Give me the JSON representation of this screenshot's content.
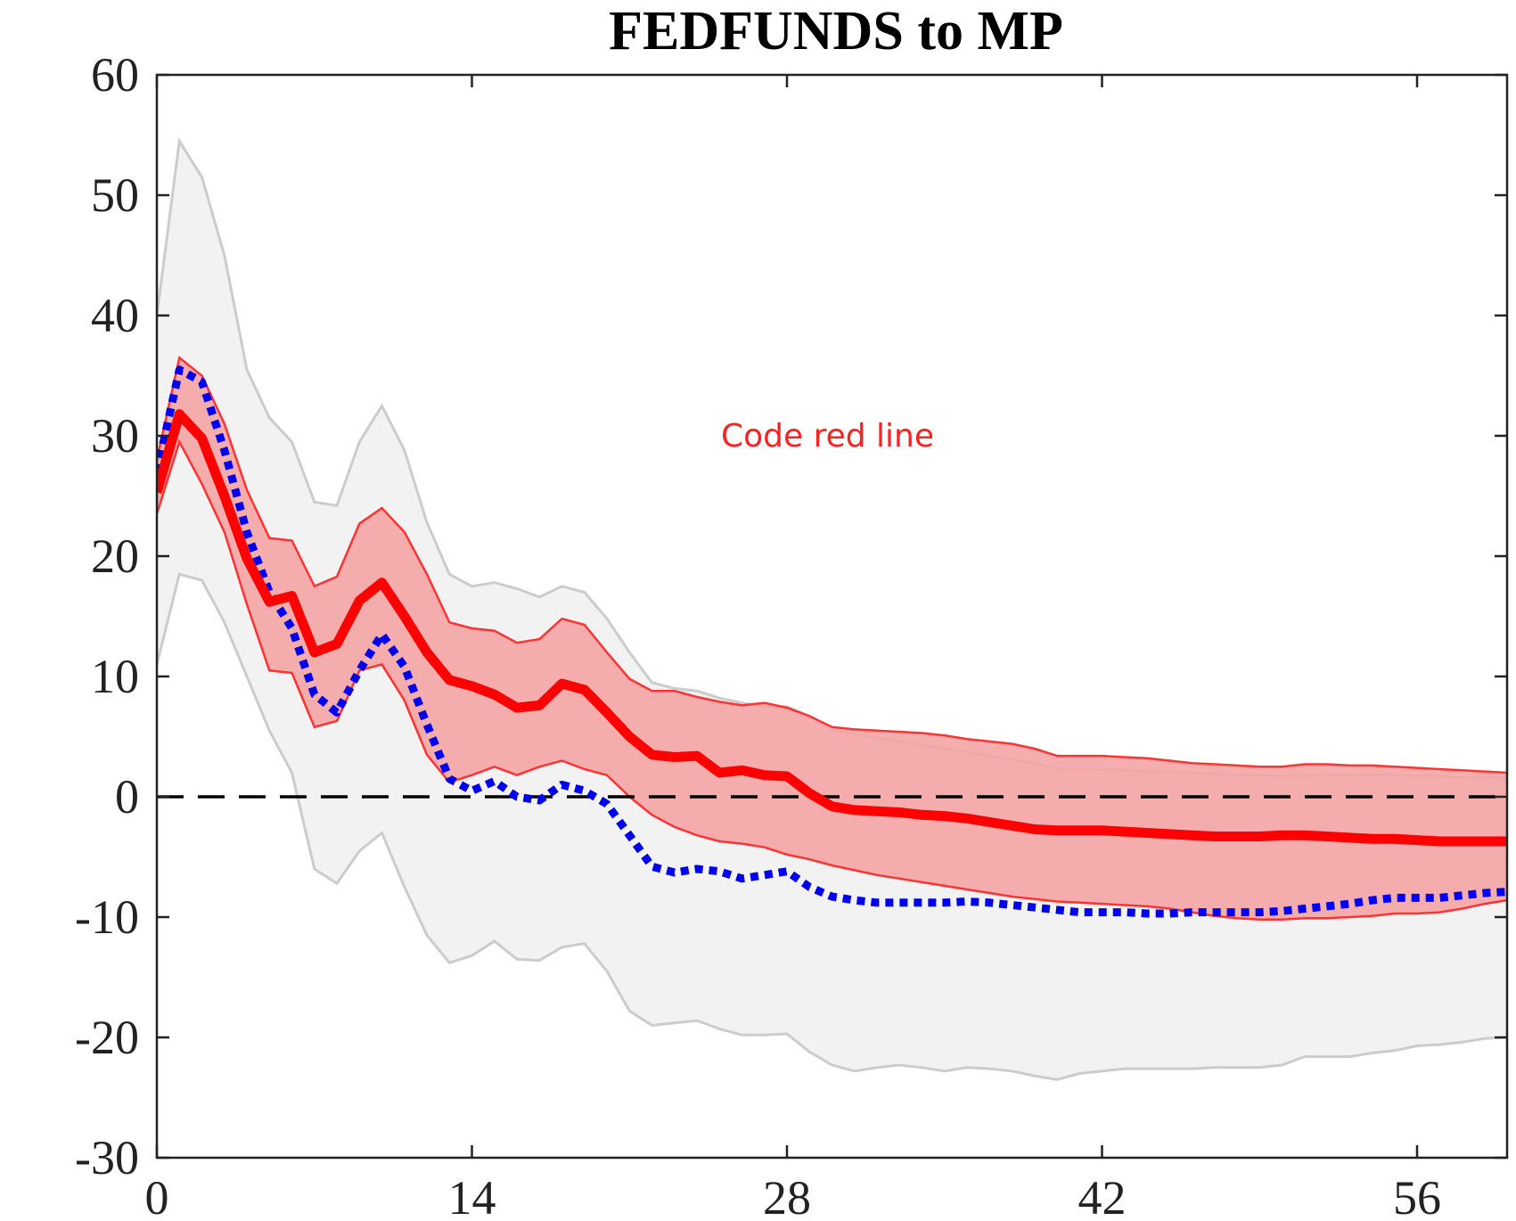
{
  "chart_data": {
    "type": "line",
    "title": "FEDFUNDS to MP",
    "xlabel": "",
    "ylabel": "",
    "xlim": [
      0,
      60
    ],
    "ylim": [
      -30,
      60
    ],
    "x_ticks": [
      0,
      14,
      28,
      42,
      56
    ],
    "y_ticks": [
      -30,
      -20,
      -10,
      0,
      10,
      20,
      30,
      40,
      50,
      60
    ],
    "annotation": {
      "text": "Code red line",
      "x": 30,
      "y": 30
    },
    "colors": {
      "main_line": "#ff0000",
      "red_band_fill": "#f4a2a2",
      "red_band_edge": "#ff3333",
      "gray_band_fill": "#f2f2f2",
      "gray_band_edge": "#cccccc",
      "dotted_line": "#0000ee",
      "zero_line": "#000000",
      "annotation": "#ff2020"
    },
    "x": [
      0,
      1,
      2,
      3,
      4,
      5,
      6,
      7,
      8,
      9,
      10,
      11,
      12,
      13,
      14,
      15,
      16,
      17,
      18,
      19,
      20,
      21,
      22,
      23,
      24,
      25,
      26,
      27,
      28,
      29,
      30,
      31,
      32,
      33,
      34,
      35,
      36,
      37,
      38,
      39,
      40,
      41,
      42,
      43,
      44,
      45,
      46,
      47,
      48,
      49,
      50,
      51,
      52,
      53,
      54,
      55,
      56,
      57,
      58,
      59,
      60
    ],
    "series": [
      {
        "role": "gray-band",
        "lower": [
          11,
          18.5,
          18,
          14.5,
          10,
          5.5,
          2,
          -6,
          -7.2,
          -4.5,
          -3,
          -7.5,
          -11.5,
          -13.8,
          -13.2,
          -12,
          -13.5,
          -13.6,
          -12.5,
          -12.2,
          -14.5,
          -17.8,
          -19,
          -18.8,
          -18.6,
          -19.3,
          -19.8,
          -19.8,
          -19.7,
          -21.2,
          -22.3,
          -22.8,
          -22.5,
          -22.3,
          -22.5,
          -22.8,
          -22.5,
          -22.6,
          -22.8,
          -23.2,
          -23.5,
          -23,
          -22.8,
          -22.6,
          -22.6,
          -22.6,
          -22.6,
          -22.5,
          -22.5,
          -22.5,
          -22.3,
          -21.6,
          -21.6,
          -21.6,
          -21.3,
          -21.1,
          -20.7,
          -20.6,
          -20.4,
          -20.1,
          -20
        ]
      },
      {
        "role": "gray-band",
        "upper": [
          40,
          54.5,
          51.5,
          45,
          35.5,
          31.5,
          29.5,
          24.5,
          24.2,
          29.5,
          32.5,
          28.8,
          22.8,
          18.5,
          17.5,
          17.8,
          17.3,
          16.6,
          17.5,
          17,
          14.8,
          12,
          9.5,
          9,
          8.8,
          8.2,
          7.8,
          7.5,
          7.5,
          6.7,
          5.6,
          5.2,
          4.9,
          4.6,
          4.3,
          4,
          3.7,
          3.4,
          3.1,
          2.8,
          2.3,
          2.3,
          2.3,
          2.2,
          2.1,
          2,
          2,
          1.9,
          1.8,
          1.8,
          1.7,
          1.7,
          1.8,
          1.8,
          1.8,
          1.8,
          1.7,
          1.7,
          1.6,
          1.6,
          1.6
        ]
      },
      {
        "role": "red-band",
        "lower": [
          23.5,
          29.5,
          26,
          22,
          16,
          10.5,
          10.3,
          5.8,
          6.3,
          10.5,
          11,
          8,
          3.5,
          1.2,
          1.8,
          2.5,
          1.8,
          2.5,
          3,
          2.3,
          1.8,
          0,
          -1.5,
          -2.5,
          -3.2,
          -3.7,
          -3.9,
          -4.2,
          -4.8,
          -5.2,
          -5.7,
          -6.1,
          -6.5,
          -6.8,
          -7.1,
          -7.4,
          -7.7,
          -8,
          -8.3,
          -8.5,
          -8.7,
          -8.8,
          -8.9,
          -9,
          -9.1,
          -9.3,
          -9.6,
          -9.9,
          -10.1,
          -10.2,
          -10.2,
          -10.1,
          -10.1,
          -10,
          -9.9,
          -9.7,
          -9.7,
          -9.6,
          -9.3,
          -8.9,
          -8.6
        ]
      },
      {
        "role": "red-band",
        "upper": [
          28,
          36.5,
          35,
          31,
          25.5,
          21.5,
          21.3,
          17.5,
          18.3,
          22.7,
          24,
          22,
          18.5,
          14.5,
          14,
          13.8,
          12.8,
          13.1,
          14.8,
          14.3,
          12,
          9.8,
          8.8,
          8.8,
          8.3,
          7.9,
          7.6,
          7.8,
          7.4,
          6.7,
          5.8,
          5.6,
          5.5,
          5.4,
          5.3,
          5.1,
          4.8,
          4.6,
          4.4,
          4,
          3.4,
          3.4,
          3.4,
          3.3,
          3.2,
          3,
          2.8,
          2.7,
          2.6,
          2.5,
          2.5,
          2.7,
          2.7,
          2.6,
          2.6,
          2.5,
          2.4,
          2.3,
          2.2,
          2.1,
          2
        ]
      },
      {
        "role": "median",
        "values": [
          25.3,
          31.8,
          29.8,
          25,
          19.8,
          16.2,
          16.7,
          12,
          12.7,
          16.3,
          17.8,
          15,
          12,
          9.7,
          9.2,
          8.5,
          7.4,
          7.6,
          9.4,
          8.9,
          7,
          5,
          3.5,
          3.3,
          3.4,
          2,
          2.2,
          1.8,
          1.7,
          0.3,
          -0.8,
          -1.1,
          -1.2,
          -1.3,
          -1.5,
          -1.6,
          -1.8,
          -2.1,
          -2.4,
          -2.7,
          -2.8,
          -2.8,
          -2.8,
          -2.9,
          -3,
          -3.1,
          -3.2,
          -3.3,
          -3.3,
          -3.3,
          -3.2,
          -3.2,
          -3.3,
          -3.4,
          -3.5,
          -3.5,
          -3.6,
          -3.7,
          -3.7,
          -3.7,
          -3.7
        ]
      },
      {
        "role": "dotted",
        "values": [
          27,
          35.5,
          34.5,
          28.8,
          22,
          17,
          14,
          8.5,
          7,
          10.5,
          13.5,
          10.8,
          6,
          1.5,
          0.5,
          1.3,
          0,
          -0.3,
          1,
          0.5,
          -0.6,
          -3.2,
          -5.8,
          -6.3,
          -6,
          -6.2,
          -6.8,
          -6.5,
          -6.2,
          -7.5,
          -8.3,
          -8.6,
          -8.8,
          -8.8,
          -8.8,
          -8.8,
          -8.7,
          -8.8,
          -9,
          -9.2,
          -9.4,
          -9.6,
          -9.6,
          -9.6,
          -9.7,
          -9.7,
          -9.6,
          -9.6,
          -9.6,
          -9.6,
          -9.5,
          -9.3,
          -9.1,
          -8.9,
          -8.6,
          -8.4,
          -8.4,
          -8.4,
          -8.2,
          -8,
          -7.9
        ]
      }
    ]
  }
}
